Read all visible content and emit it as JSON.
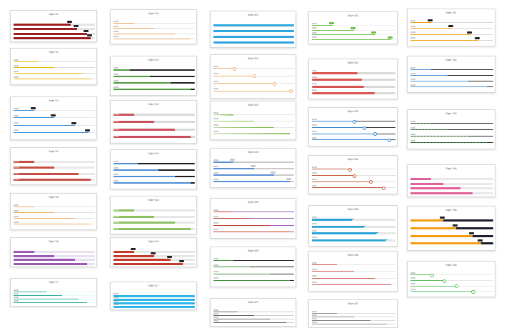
{
  "cards": [
    {
      "title": "Style V1",
      "kind": "solid",
      "color": "#9b1f1f",
      "track": "#e3e3e3",
      "values": [
        0.7,
        0.78,
        0.9,
        0.95
      ],
      "valueTag": "dark"
    },
    {
      "title": "Style V2",
      "kind": "thin",
      "color": "#e6b800",
      "track": "#d8d8d8",
      "values": [
        0.3,
        0.5,
        0.85,
        0.95
      ],
      "label": "HTML"
    },
    {
      "title": "Style V3",
      "kind": "tagged",
      "color": "#3a8fd6",
      "track": "#e6e6e6",
      "values": [
        0.25,
        0.5,
        0.75,
        0.92
      ],
      "tag": "#222"
    },
    {
      "title": "Style V4",
      "kind": "solid",
      "color": "#c44f45",
      "track": "#e8e8e8",
      "values": [
        0.25,
        0.5,
        0.8,
        0.95
      ],
      "labelInside": true
    },
    {
      "title": "Style V5",
      "kind": "line",
      "color": "#f0a860",
      "track": "#e0e0e0",
      "values": [
        0.25,
        0.5,
        0.75,
        0.95
      ]
    },
    {
      "title": "Style V6",
      "kind": "solid",
      "color": "#9b59b6",
      "track": "#e8e0f0",
      "values": [
        0.25,
        0.5,
        0.75,
        0.9
      ]
    },
    {
      "title": "Style V7",
      "kind": "line",
      "color": "#2fb39a",
      "track": "#dfe",
      "values": [
        0.4,
        0.6,
        0.8,
        0.9
      ]
    },
    {
      "title": "Style V11",
      "kind": "line",
      "color": "#e6a060",
      "track": "#e0e0e0",
      "values": [
        0.25,
        0.5,
        0.75,
        0.95
      ]
    },
    {
      "title": "Style V12",
      "kind": "thickline",
      "color": "#4c9c3c",
      "track": "#222",
      "values": [
        0.2,
        0.45,
        0.7,
        0.95
      ]
    },
    {
      "title": "Style V13",
      "kind": "solid",
      "color": "#c9505a",
      "track": "#d9d9d9",
      "values": [
        0.25,
        0.5,
        0.75,
        0.95
      ],
      "labelInside": true
    },
    {
      "title": "Style V14",
      "kind": "tri",
      "color": "#4b8fd6",
      "track": "#1c1c1c",
      "values": [
        0.3,
        0.55,
        0.75,
        0.95
      ]
    },
    {
      "title": "Style V15",
      "kind": "solid",
      "color": "#8cc063",
      "track": "#e6e6e6",
      "values": [
        0.25,
        0.5,
        0.75,
        0.95
      ],
      "labelInside": true
    },
    {
      "title": "Style V16",
      "kind": "solid",
      "color": "#c0392b",
      "track": "#e6e6e6",
      "values": [
        0.25,
        0.5,
        0.7,
        0.85
      ],
      "valueTag": "dark"
    },
    {
      "title": "Style V17",
      "kind": "blueblock",
      "color": "#2fb6e8",
      "track": "#2fb6e8",
      "values": [
        0.4,
        0.55,
        0.7,
        0.85
      ]
    },
    {
      "title": "Style V21",
      "kind": "solid",
      "color": "#2ea6de",
      "track": "#2ea6de",
      "values": [
        0.25,
        0.5,
        0.75,
        0.95
      ],
      "valueTag": "light"
    },
    {
      "title": "Style V22",
      "kind": "knobline",
      "color": "#f0b070",
      "track": "#e0e0e0",
      "values": [
        0.25,
        0.5,
        0.75,
        0.95
      ]
    },
    {
      "title": "Style V23",
      "kind": "wedge",
      "color": "#7cbb49",
      "track": "#e6e6e6",
      "values": [
        0.25,
        0.5,
        0.75,
        0.95
      ]
    },
    {
      "title": "Style V24",
      "kind": "boxslider",
      "color": "#5b8fd6",
      "track": "#c9c9c9",
      "values": [
        0.25,
        0.5,
        0.75,
        0.95
      ]
    },
    {
      "title": "Style V25",
      "kind": "line",
      "color": "#c0392b",
      "track": "#9b59b6",
      "values": [
        0.25,
        0.45,
        0.7,
        0.95
      ]
    },
    {
      "title": "Style V26",
      "kind": "line",
      "color": "#3b8f3b",
      "track": "#222",
      "values": [
        0.25,
        0.45,
        0.7,
        0.95
      ]
    },
    {
      "title": "Style V27",
      "kind": "line",
      "color": "#666",
      "track": "#ccc",
      "values": [
        0.3,
        0.5,
        0.7,
        0.9
      ]
    },
    {
      "title": "Style V31",
      "kind": "tagged",
      "color": "#6cc04a",
      "track": "#f2f2f2",
      "values": [
        0.25,
        0.5,
        0.75,
        0.95
      ],
      "tag": "#6cc04a"
    },
    {
      "title": "Style V32",
      "kind": "pill",
      "color": "#d9534f",
      "track": "#d8d8d8",
      "values": [
        0.55,
        0.6,
        0.62,
        0.75
      ]
    },
    {
      "title": "Style V33",
      "kind": "knobline",
      "color": "#2d7fd1",
      "track": "#333",
      "values": [
        0.5,
        0.62,
        0.75,
        0.92
      ]
    },
    {
      "title": "Style V34",
      "kind": "knobline",
      "color": "#c45a3a",
      "track": "#e0e0e0",
      "values": [
        0.45,
        0.5,
        0.7,
        0.85
      ]
    },
    {
      "title": "Style V35",
      "kind": "slant",
      "color": "#2aa3d6",
      "track": "#e6e6e6",
      "values": [
        0.5,
        0.65,
        0.8,
        0.92
      ]
    },
    {
      "title": "Style V36",
      "kind": "arrow",
      "color": "#d9534f",
      "track": "#e6e6e6",
      "values": [
        0.3,
        0.5,
        0.75,
        0.95
      ]
    },
    {
      "title": "Style V37",
      "kind": "line",
      "color": "#888",
      "track": "#ddd",
      "values": [
        0.3,
        0.5,
        0.7,
        0.9
      ]
    },
    {
      "title": "Style V41",
      "kind": "tagged",
      "color": "#f39c12",
      "track": "#d8d8d8",
      "values": [
        0.25,
        0.5,
        0.72,
        0.82
      ],
      "tag": "#222"
    },
    {
      "title": "Style V42",
      "kind": "line",
      "color": "#4b8fd6",
      "track": "#222",
      "values": [
        0.25,
        0.45,
        0.7,
        0.92
      ]
    },
    {
      "title": "Style V43",
      "kind": "dotted",
      "color": "#3eaa3e",
      "track": "#222",
      "values": [
        0.25,
        0.45,
        0.7,
        0.92
      ]
    },
    {
      "title": "Style V44",
      "kind": "solid",
      "color": "#e0609a",
      "track": "#e8e8e8",
      "values": [
        0.25,
        0.4,
        0.6,
        0.75
      ],
      "valueTag": "none"
    },
    {
      "title": "Style V45",
      "kind": "solid",
      "color": "#f39c12",
      "track": "#1e1e2e",
      "values": [
        0.4,
        0.55,
        0.75,
        0.85
      ],
      "valueTag": "dark"
    },
    {
      "title": "Style V46",
      "kind": "knobline",
      "color": "#5cbf5c",
      "track": "#e6e6e6",
      "values": [
        0.25,
        0.4,
        0.55,
        0.75
      ]
    }
  ],
  "rowLabel": "HTML"
}
